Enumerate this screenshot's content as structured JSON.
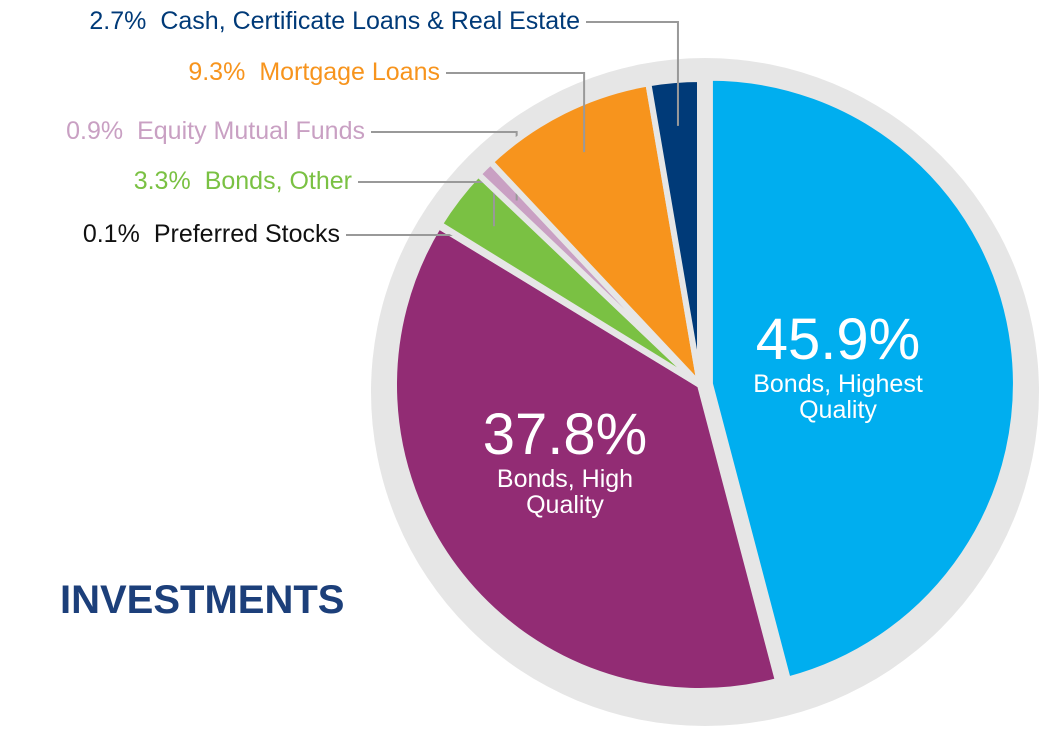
{
  "chart_data": {
    "type": "pie",
    "title": "INVESTMENTS",
    "categories": [
      "Bonds, Highest Quality",
      "Bonds, High Quality",
      "Preferred Stocks",
      "Bonds, Other",
      "Equity Mutual Funds",
      "Mortgage Loans",
      "Cash, Certificate Loans & Real Estate"
    ],
    "values": [
      45.9,
      37.8,
      0.1,
      3.3,
      0.9,
      9.3,
      2.7
    ],
    "value_labels": [
      "45.9%",
      "37.8%",
      "0.1%",
      "3.3%",
      "0.9%",
      "9.3%",
      "2.7%"
    ],
    "colors": [
      "#00aeef",
      "#922c74",
      "#111111",
      "#7ac143",
      "#c9a0c3",
      "#f7941d",
      "#003a78"
    ]
  }
}
